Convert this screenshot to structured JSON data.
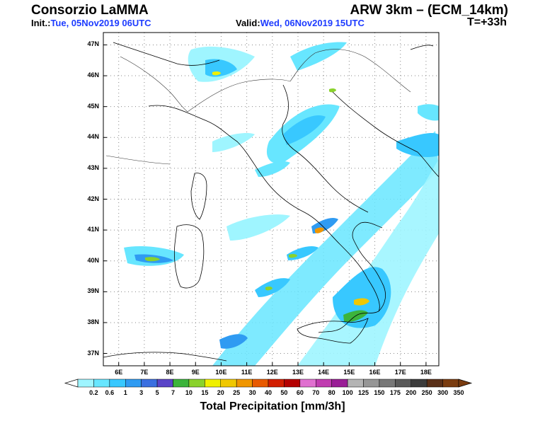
{
  "header": {
    "org": "Consorzio LaMMA",
    "model": "ARW 3km – (ECM_14km)",
    "init_label": "Init.:",
    "init_value": "Tue, 05Nov2019 06UTC",
    "valid_label": "Valid:",
    "valid_value": "Wed, 06Nov2019 15UTC",
    "step": "T=+33h"
  },
  "map": {
    "lat_ticks": [
      "47N",
      "46N",
      "45N",
      "44N",
      "43N",
      "42N",
      "41N",
      "40N",
      "39N",
      "38N",
      "37N"
    ],
    "lon_ticks": [
      "6E",
      "7E",
      "8E",
      "9E",
      "10E",
      "11E",
      "12E",
      "13E",
      "14E",
      "15E",
      "16E",
      "17E",
      "18E"
    ],
    "lat_range": [
      36.6,
      47.4
    ],
    "lon_range": [
      5.4,
      18.5
    ]
  },
  "colorbar": {
    "title": "Total Precipitation [mm/3h]",
    "labels": [
      "0.2",
      "0.6",
      "1",
      "3",
      "5",
      "7",
      "10",
      "15",
      "20",
      "25",
      "30",
      "40",
      "50",
      "60",
      "70",
      "80",
      "100",
      "125",
      "150",
      "175",
      "200",
      "250",
      "300",
      "350"
    ],
    "colors": [
      "#9ff5ff",
      "#67e6ff",
      "#38c8ff",
      "#2f9bf2",
      "#3a6fe0",
      "#5a44c8",
      "#3cb43c",
      "#8ad22c",
      "#f0f000",
      "#f0c800",
      "#f09600",
      "#e85a00",
      "#d21e00",
      "#b40000",
      "#e070d0",
      "#c03cb0",
      "#9a1e96",
      "#b4b4b4",
      "#969696",
      "#787878",
      "#5a5a5a",
      "#3c3c3c",
      "#5a3018",
      "#7a3c10"
    ]
  }
}
